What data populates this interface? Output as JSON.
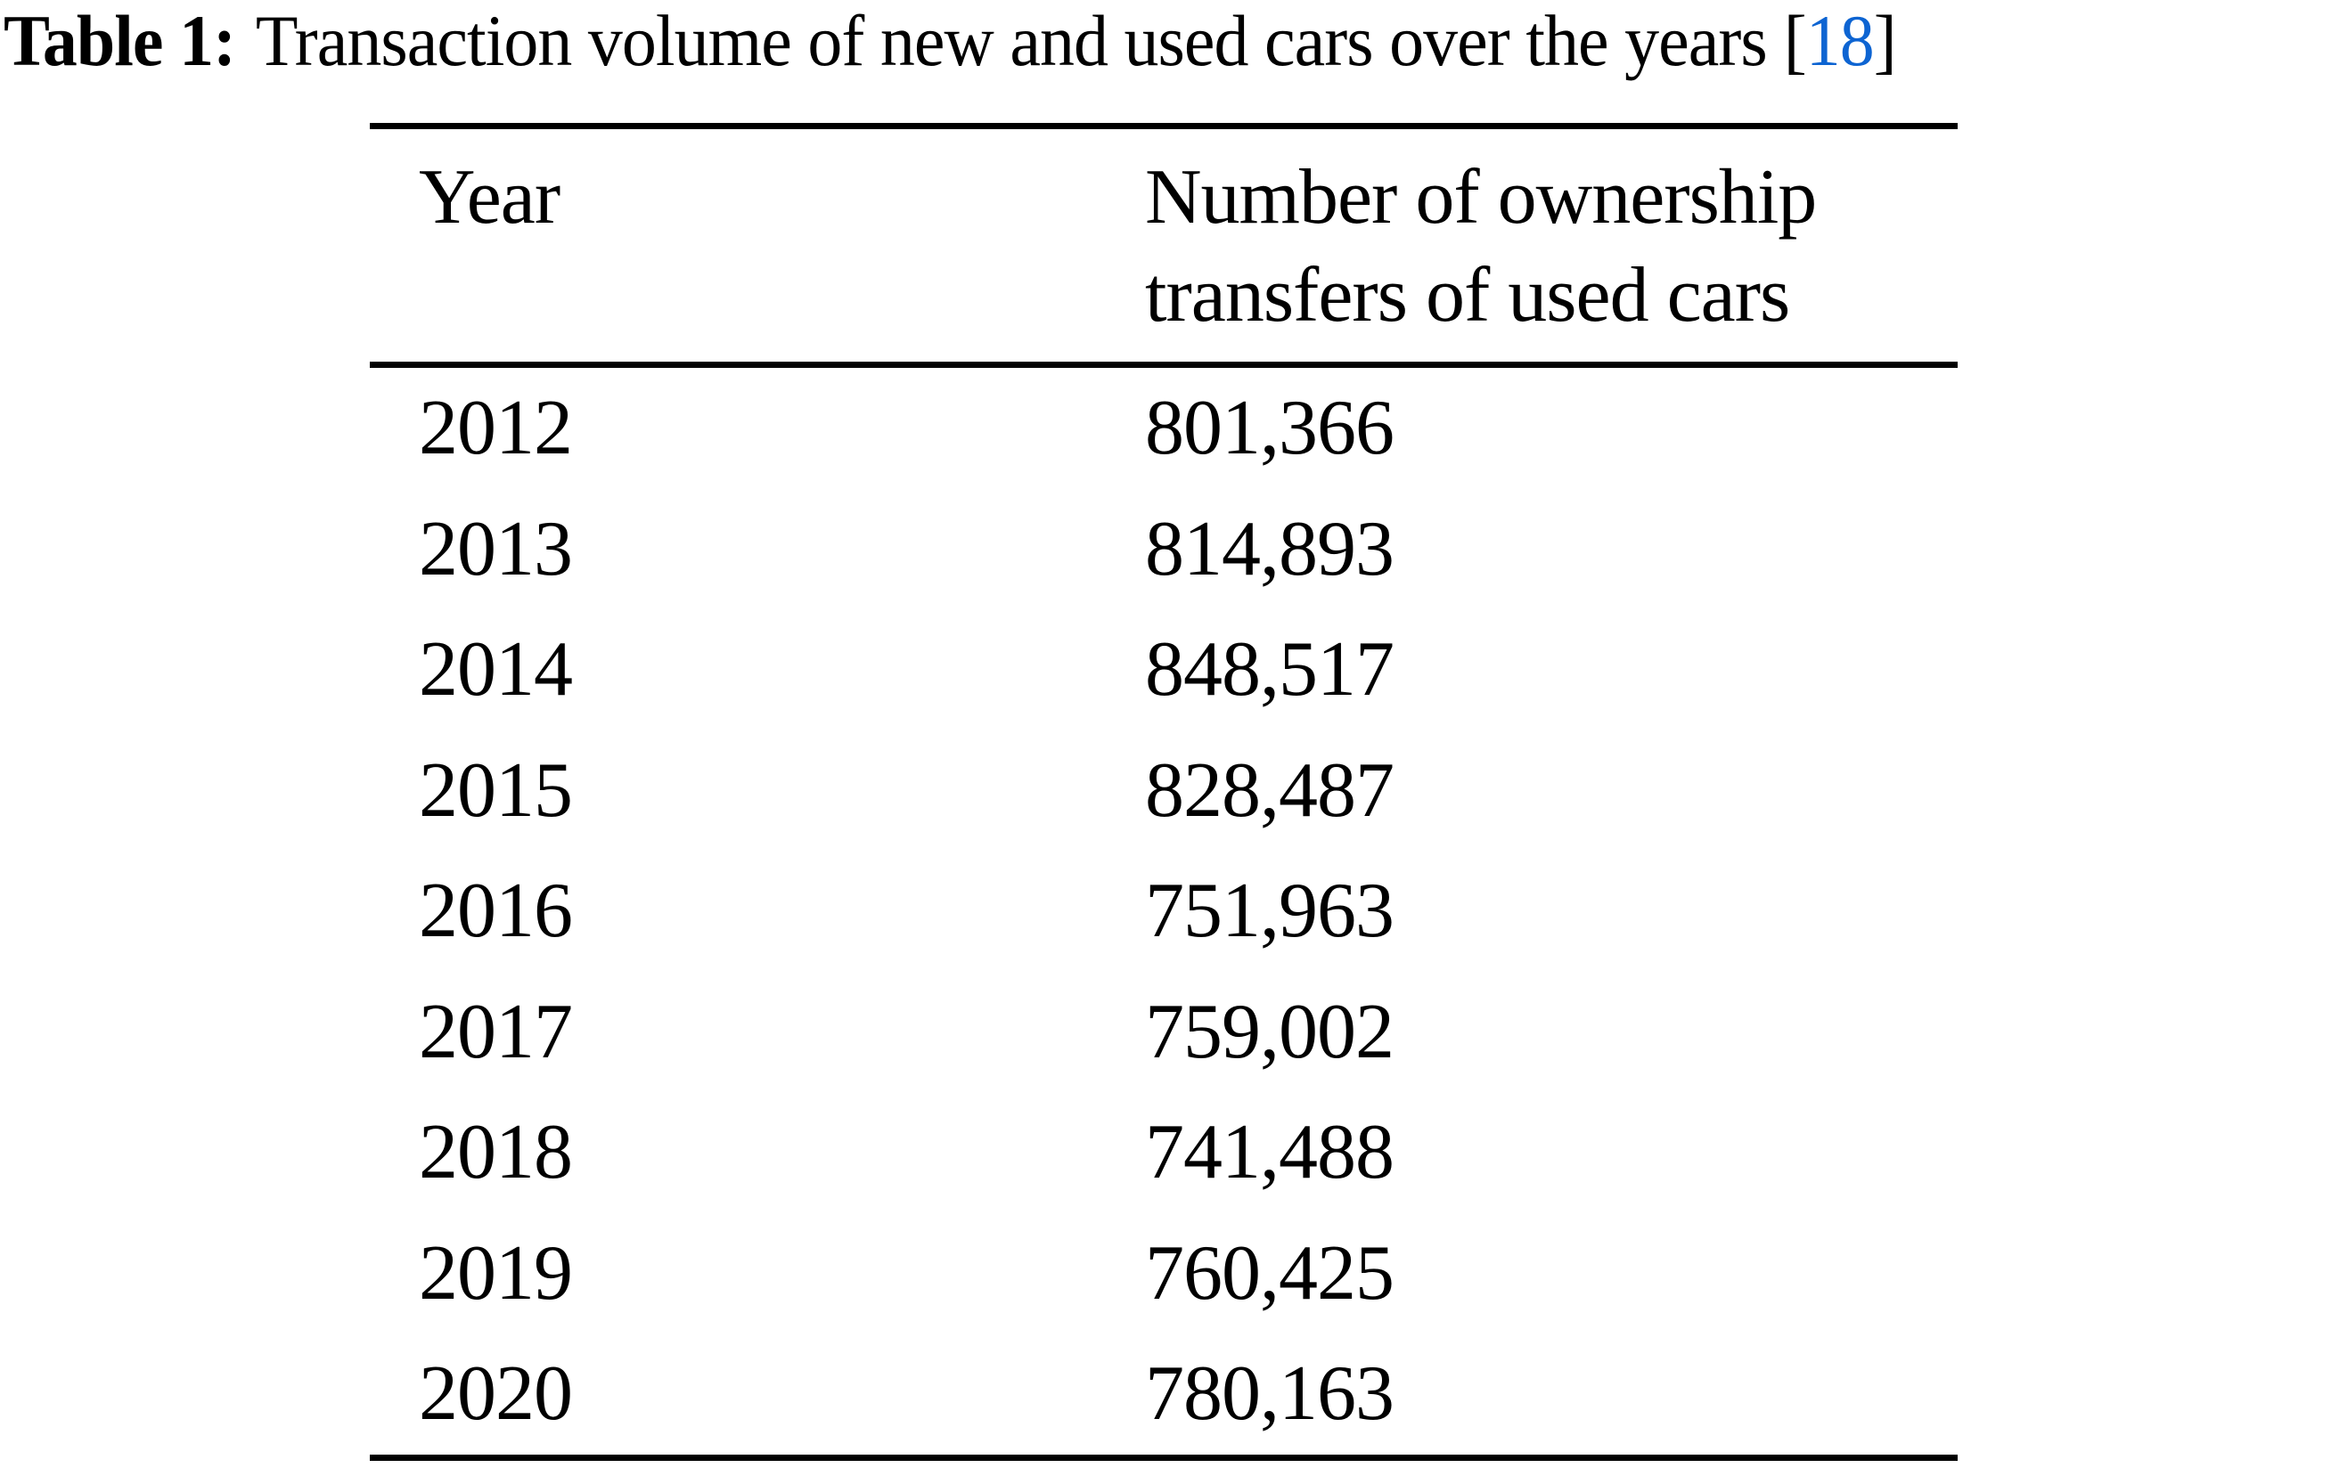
{
  "caption": {
    "label": "Table 1:",
    "text": "Transaction volume of new and used cars over the years",
    "citation_open": "[",
    "citation": "18",
    "citation_close": "]"
  },
  "table": {
    "header": {
      "year": "Year",
      "value_line1": "Number of ownership",
      "value_line2": "transfers of used cars"
    },
    "rows": [
      {
        "year": "2012",
        "value": "801,366"
      },
      {
        "year": "2013",
        "value": "814,893"
      },
      {
        "year": "2014",
        "value": "848,517"
      },
      {
        "year": "2015",
        "value": "828,487"
      },
      {
        "year": "2016",
        "value": "751,963"
      },
      {
        "year": "2017",
        "value": "759,002"
      },
      {
        "year": "2018",
        "value": "741,488"
      },
      {
        "year": "2019",
        "value": "760,425"
      },
      {
        "year": "2020",
        "value": "780,163"
      }
    ]
  },
  "chart_data": {
    "type": "table",
    "title": "Table 1: Transaction volume of new and used cars over the years [18]",
    "columns": [
      "Year",
      "Number of ownership transfers of used cars"
    ],
    "categories": [
      "2012",
      "2013",
      "2014",
      "2015",
      "2016",
      "2017",
      "2018",
      "2019",
      "2020"
    ],
    "values": [
      801366,
      814893,
      848517,
      828487,
      751963,
      759002,
      741488,
      760425,
      780163
    ]
  },
  "colors": {
    "citation_blue": "#0d64d2",
    "text": "#000000"
  }
}
